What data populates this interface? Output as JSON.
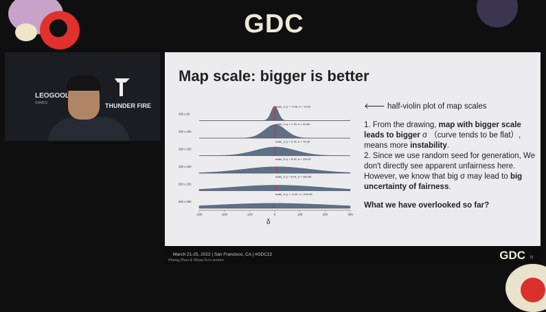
{
  "brand": {
    "logo": "GDC"
  },
  "webcam": {
    "brand_left": "LEOGOOL",
    "brand_left_sub": "GAMES",
    "brand_right": "THUNDER FIRE"
  },
  "slide": {
    "title": "Map scale: bigger is better",
    "pointer": "🡐 half-violin plot of map scales",
    "p1_a": "1. From the drawing, ",
    "p1_b": "map with bigger scale leads to bigger",
    "p1_c": " σ （curve tends to be flat）, means more ",
    "p1_d": "instability",
    "p1_e": ".",
    "p2_a": "2. Since we use random seed for generation, We don't directly see apparent unfairness here. However, we know that big  σ may lead to ",
    "p2_b": "big uncertainty of fairness",
    "p2_c": ".",
    "question": "What we have overlooked so far?"
  },
  "chart_data": {
    "type": "area",
    "xlabel": "δ",
    "xlim": [
      -300,
      300
    ],
    "x_ticks": [
      "-300",
      "-200",
      "-100",
      "0",
      "100",
      "200",
      "300"
    ],
    "rows": [
      {
        "label": "300 x 50",
        "annotation": "scale_3: μ = -0.06, σ = 14.42",
        "mu": -0.06,
        "sigma": 14.42
      },
      {
        "label": "200 x 100",
        "annotation": "scale_2: μ = 1.78, σ = 41.86",
        "mu": 1.78,
        "sigma": 41.86
      },
      {
        "label": "300 x 150",
        "annotation": "scale_3: μ = 2.78, σ = 79.35",
        "mu": 2.78,
        "sigma": 79.35
      },
      {
        "label": "400 x 200",
        "annotation": "scale_3: μ = 8.33, σ = 133.57",
        "mu": 8.33,
        "sigma": 133.57
      },
      {
        "label": "500 x 250",
        "annotation": "scale_3: μ = 6.01, σ = 183.69",
        "mu": 6.01,
        "sigma": 183.69
      },
      {
        "label": "600 x 300",
        "annotation": "scale_3: μ = -4.32, σ = 249.06",
        "mu": -4.32,
        "sigma": 249.06
      }
    ],
    "colors": {
      "fill": "#5e6f86",
      "mean": "#d9252a"
    }
  },
  "footer": {
    "info": "March 21-25, 2022  |  San Francisco, CA  |  #GDC22",
    "caption": "Yiheng Zhou & Shuai Xu's screen",
    "logo": "GDC",
    "page": "21"
  }
}
